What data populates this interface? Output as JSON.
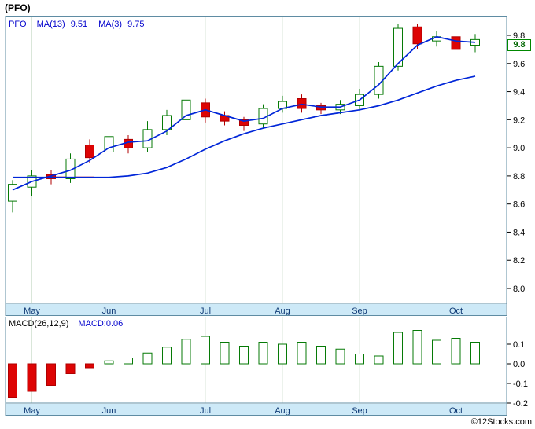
{
  "page": {
    "title": "(PFO)",
    "credit": "©12Stocks.com"
  },
  "colors": {
    "up": "#067a06",
    "down": "#dd0404",
    "ma": "#0026d8",
    "band": "#cde9f7",
    "border": "#5f8ca3",
    "grid": "#d9e6d9",
    "month_text": "#0f3a75",
    "price_tag": "#008000"
  },
  "chart_data": [
    {
      "type": "candlestick",
      "title": "PFO weekly price with moving averages",
      "legend": {
        "symbol": "PFO",
        "items": [
          {
            "label": "MA(13)",
            "value": "9.51"
          },
          {
            "label": "MA(3)",
            "value": "9.75"
          }
        ]
      },
      "last_price_label": "9.8",
      "y_axis": {
        "ticks": [
          9.8,
          9.6,
          9.4,
          9.2,
          9.0,
          8.8,
          8.6,
          8.4,
          8.2,
          8.0
        ],
        "range": [
          7.95,
          9.92
        ]
      },
      "x_axis": {
        "labels": [
          "May",
          "Jun",
          "Jul",
          "Aug",
          "Sep",
          "Oct"
        ],
        "label_indices": [
          1,
          5,
          10,
          14,
          18,
          23
        ]
      },
      "candles": [
        {
          "o": 8.62,
          "h": 8.77,
          "l": 8.54,
          "c": 8.74
        },
        {
          "o": 8.72,
          "h": 8.84,
          "l": 8.66,
          "c": 8.8
        },
        {
          "o": 8.81,
          "h": 8.84,
          "l": 8.74,
          "c": 8.78
        },
        {
          "o": 8.78,
          "h": 8.96,
          "l": 8.75,
          "c": 8.92
        },
        {
          "o": 9.02,
          "h": 9.06,
          "l": 8.89,
          "c": 8.93
        },
        {
          "o": 8.97,
          "h": 9.12,
          "l": 8.02,
          "c": 9.08
        },
        {
          "o": 9.06,
          "h": 9.09,
          "l": 8.96,
          "c": 9.0
        },
        {
          "o": 9.0,
          "h": 9.19,
          "l": 8.97,
          "c": 9.13
        },
        {
          "o": 9.13,
          "h": 9.27,
          "l": 9.09,
          "c": 9.23
        },
        {
          "o": 9.2,
          "h": 9.38,
          "l": 9.16,
          "c": 9.34
        },
        {
          "o": 9.32,
          "h": 9.35,
          "l": 9.18,
          "c": 9.22
        },
        {
          "o": 9.23,
          "h": 9.26,
          "l": 9.16,
          "c": 9.19
        },
        {
          "o": 9.2,
          "h": 9.22,
          "l": 9.12,
          "c": 9.16
        },
        {
          "o": 9.17,
          "h": 9.31,
          "l": 9.14,
          "c": 9.28
        },
        {
          "o": 9.28,
          "h": 9.37,
          "l": 9.25,
          "c": 9.33
        },
        {
          "o": 9.35,
          "h": 9.38,
          "l": 9.25,
          "c": 9.28
        },
        {
          "o": 9.3,
          "h": 9.32,
          "l": 9.24,
          "c": 9.27
        },
        {
          "o": 9.27,
          "h": 9.34,
          "l": 9.24,
          "c": 9.31
        },
        {
          "o": 9.3,
          "h": 9.42,
          "l": 9.27,
          "c": 9.38
        },
        {
          "o": 9.38,
          "h": 9.61,
          "l": 9.35,
          "c": 9.58
        },
        {
          "o": 9.58,
          "h": 9.88,
          "l": 9.55,
          "c": 9.85
        },
        {
          "o": 9.86,
          "h": 9.88,
          "l": 9.7,
          "c": 9.74
        },
        {
          "o": 9.76,
          "h": 9.83,
          "l": 9.72,
          "c": 9.79
        },
        {
          "o": 9.79,
          "h": 9.82,
          "l": 9.66,
          "c": 9.7
        },
        {
          "o": 9.73,
          "h": 9.81,
          "l": 9.68,
          "c": 9.77
        }
      ],
      "series": [
        {
          "name": "MA(13)",
          "value_label": "9.51",
          "values": [
            8.79,
            8.79,
            8.79,
            8.79,
            8.79,
            8.79,
            8.8,
            8.82,
            8.86,
            8.92,
            8.99,
            9.05,
            9.1,
            9.14,
            9.17,
            9.2,
            9.23,
            9.25,
            9.27,
            9.3,
            9.34,
            9.39,
            9.44,
            9.48,
            9.51
          ]
        },
        {
          "name": "MA(3)",
          "value_label": "9.75",
          "values": [
            8.7,
            8.76,
            8.8,
            8.84,
            8.91,
            9.0,
            9.04,
            9.05,
            9.12,
            9.23,
            9.27,
            9.23,
            9.19,
            9.21,
            9.28,
            9.31,
            9.29,
            9.29,
            9.34,
            9.45,
            9.6,
            9.73,
            9.79,
            9.76,
            9.75
          ]
        }
      ],
      "red_segment": {
        "from_index": 2,
        "to_index": 4,
        "price": 8.79
      }
    },
    {
      "type": "bar",
      "title": "MACD histogram",
      "legend": {
        "label": "MACD(26,12,9)",
        "value": "MACD:0.06"
      },
      "y_axis": {
        "ticks": [
          0.1,
          0.0,
          -0.1,
          -0.2
        ],
        "range": [
          -0.23,
          0.22
        ]
      },
      "x_axis": {
        "labels": [
          "May",
          "Jun",
          "Jul",
          "Aug",
          "Sep",
          "Oct"
        ],
        "label_indices": [
          1,
          5,
          10,
          14,
          18,
          23
        ]
      },
      "values": [
        -0.17,
        -0.14,
        -0.11,
        -0.05,
        -0.02,
        0.015,
        0.03,
        0.055,
        0.085,
        0.125,
        0.14,
        0.11,
        0.09,
        0.11,
        0.1,
        0.11,
        0.09,
        0.075,
        0.05,
        0.04,
        0.16,
        0.17,
        0.12,
        0.13,
        0.11
      ]
    }
  ]
}
